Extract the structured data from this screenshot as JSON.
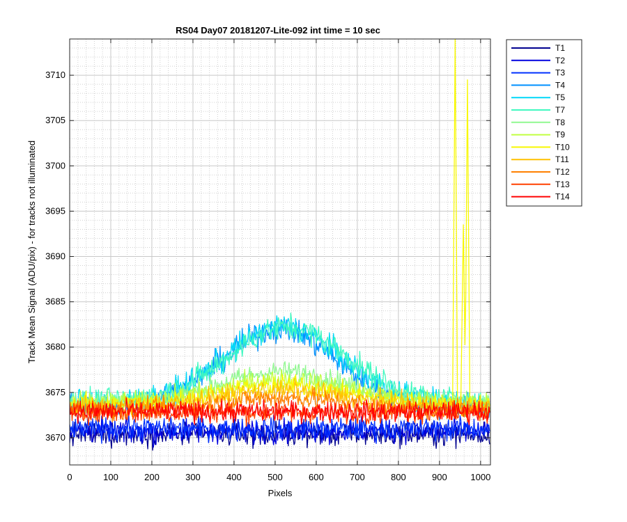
{
  "chart_data": {
    "type": "line",
    "title": "RS04 Day07 20181207-Lite-092 int time = 10 sec",
    "xlabel": "Pixels",
    "ylabel": "Track Mean Signal (ADU/pix) - for tracks not illuminated",
    "xlim": [
      0,
      1024
    ],
    "ylim": [
      3667,
      3714
    ],
    "xticks": [
      0,
      100,
      200,
      300,
      400,
      500,
      600,
      700,
      800,
      900,
      1000
    ],
    "yticks": [
      3670,
      3675,
      3680,
      3685,
      3690,
      3695,
      3700,
      3705,
      3710
    ],
    "grid": true,
    "minor_grid": true,
    "legend_position": "outside-top-right",
    "series": [
      {
        "name": "T1",
        "color": "#00008F",
        "profile": "flat",
        "baseline": 3670.4,
        "noise": 0.9
      },
      {
        "name": "T2",
        "color": "#0000DF",
        "profile": "flat",
        "baseline": 3670.7,
        "noise": 0.9
      },
      {
        "name": "T3",
        "color": "#0030FF",
        "profile": "flat",
        "baseline": 3671.0,
        "noise": 0.9
      },
      {
        "name": "T4",
        "color": "#0090FF",
        "profile": "hump",
        "baseline": 3673.5,
        "peak": 3682.0,
        "center": 510,
        "width": 230,
        "noise": 1.0
      },
      {
        "name": "T5",
        "color": "#00D8F8",
        "profile": "hump",
        "baseline": 3673.8,
        "peak": 3682.3,
        "center": 520,
        "width": 235,
        "noise": 1.0
      },
      {
        "name": "T7",
        "color": "#40F8C0",
        "profile": "hump",
        "baseline": 3674.0,
        "peak": 3682.2,
        "center": 530,
        "width": 240,
        "noise": 1.0
      },
      {
        "name": "T8",
        "color": "#90F890",
        "profile": "hump",
        "baseline": 3674.0,
        "peak": 3677.3,
        "center": 520,
        "width": 250,
        "noise": 0.8
      },
      {
        "name": "T9",
        "color": "#C0FF40",
        "profile": "hump",
        "baseline": 3673.8,
        "peak": 3676.4,
        "center": 520,
        "width": 260,
        "noise": 0.8
      },
      {
        "name": "T10",
        "color": "#F8F800",
        "profile": "hump",
        "baseline": 3673.6,
        "peak": 3675.8,
        "center": 520,
        "width": 260,
        "noise": 0.8,
        "spikes": [
          {
            "x": 938,
            "y": 3714
          },
          {
            "x": 958,
            "y": 3693.5
          },
          {
            "x": 968,
            "y": 3709.5
          }
        ]
      },
      {
        "name": "T11",
        "color": "#FFC000",
        "profile": "hump",
        "baseline": 3673.4,
        "peak": 3675.2,
        "center": 520,
        "width": 260,
        "noise": 0.8
      },
      {
        "name": "T12",
        "color": "#FF8000",
        "profile": "hump",
        "baseline": 3673.0,
        "peak": 3674.4,
        "center": 520,
        "width": 260,
        "noise": 0.8
      },
      {
        "name": "T13",
        "color": "#FF4000",
        "profile": "flat",
        "baseline": 3672.8,
        "noise": 0.8
      },
      {
        "name": "T14",
        "color": "#FF0000",
        "profile": "flat",
        "baseline": 3672.9,
        "noise": 0.8
      }
    ]
  }
}
